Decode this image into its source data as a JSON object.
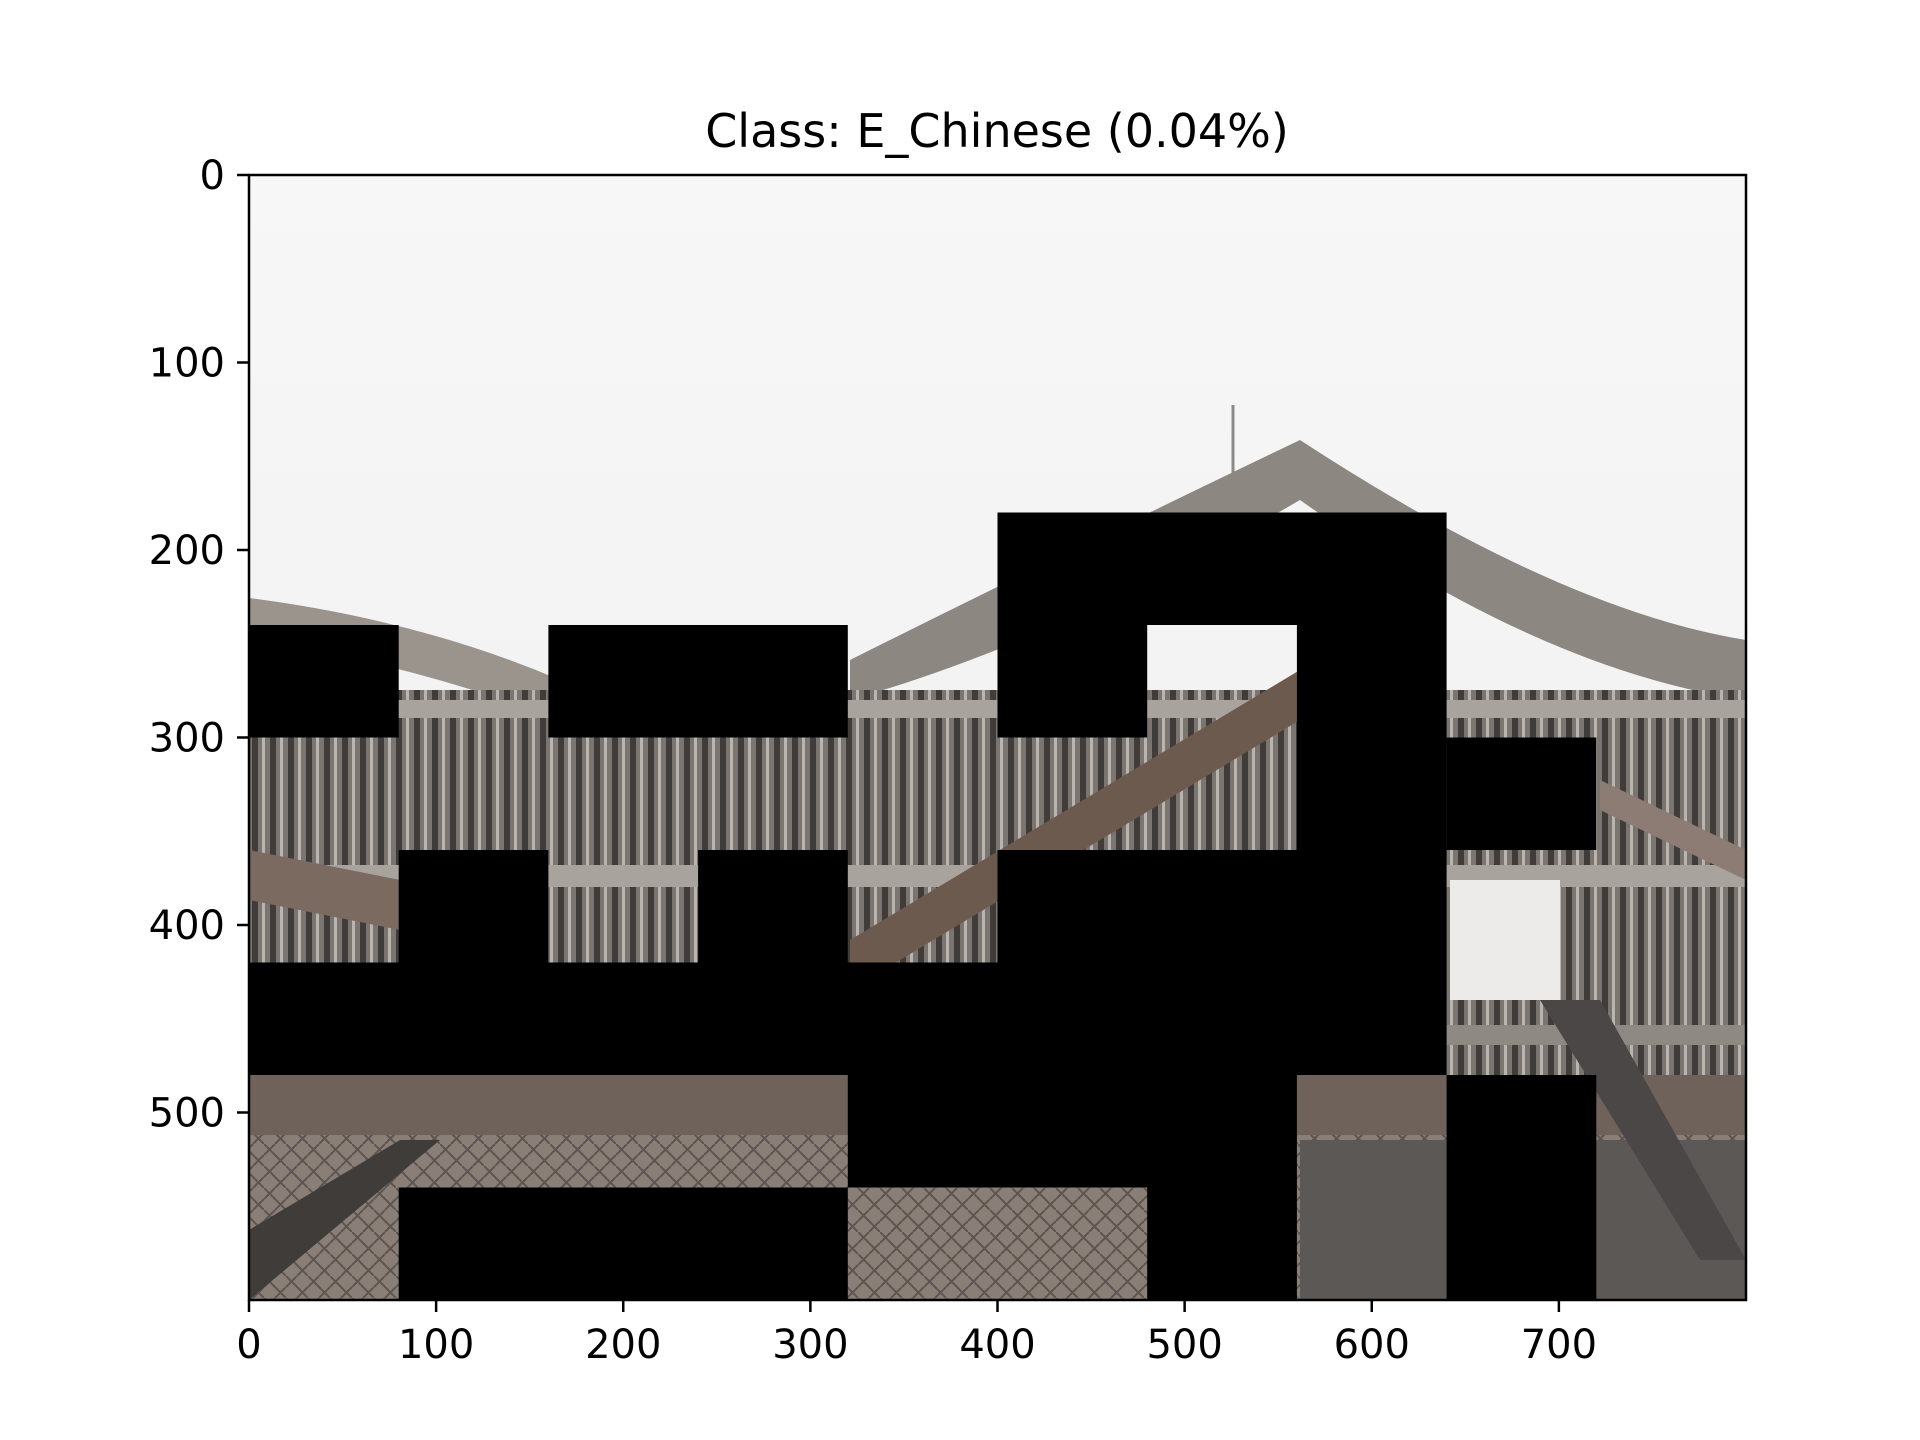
{
  "figure": {
    "title": "Class: E_Chinese (0.04%)"
  },
  "image_axes": {
    "x_ticks": [
      0,
      100,
      200,
      300,
      400,
      500,
      600,
      700
    ],
    "y_ticks": [
      0,
      100,
      200,
      300,
      400,
      500
    ],
    "xlim": [
      0,
      800
    ],
    "ylim_top_to_bottom": [
      0,
      600
    ]
  },
  "occlusion_grid": {
    "cell_size": 80,
    "masked_blocks": [
      {
        "x": 0,
        "y": 240,
        "w": 80,
        "h": 60
      },
      {
        "x": 160,
        "y": 240,
        "w": 160,
        "h": 60
      },
      {
        "x": 400,
        "y": 180,
        "w": 240,
        "h": 60
      },
      {
        "x": 400,
        "y": 240,
        "w": 80,
        "h": 60
      },
      {
        "x": 560,
        "y": 240,
        "w": 80,
        "h": 120
      },
      {
        "x": 640,
        "y": 300,
        "w": 80,
        "h": 60
      },
      {
        "x": 80,
        "y": 360,
        "w": 80,
        "h": 60
      },
      {
        "x": 240,
        "y": 360,
        "w": 80,
        "h": 60
      },
      {
        "x": 400,
        "y": 360,
        "w": 240,
        "h": 60
      },
      {
        "x": 0,
        "y": 420,
        "w": 640,
        "h": 60
      },
      {
        "x": 320,
        "y": 480,
        "w": 240,
        "h": 60
      },
      {
        "x": 640,
        "y": 480,
        "w": 80,
        "h": 120
      },
      {
        "x": 80,
        "y": 540,
        "w": 240,
        "h": 60
      },
      {
        "x": 480,
        "y": 540,
        "w": 80,
        "h": 60
      }
    ]
  },
  "colors": {
    "sky": "#f4f4f4",
    "roof": "#8d8781",
    "facade": "#6f6a65",
    "mask": "#000000"
  }
}
